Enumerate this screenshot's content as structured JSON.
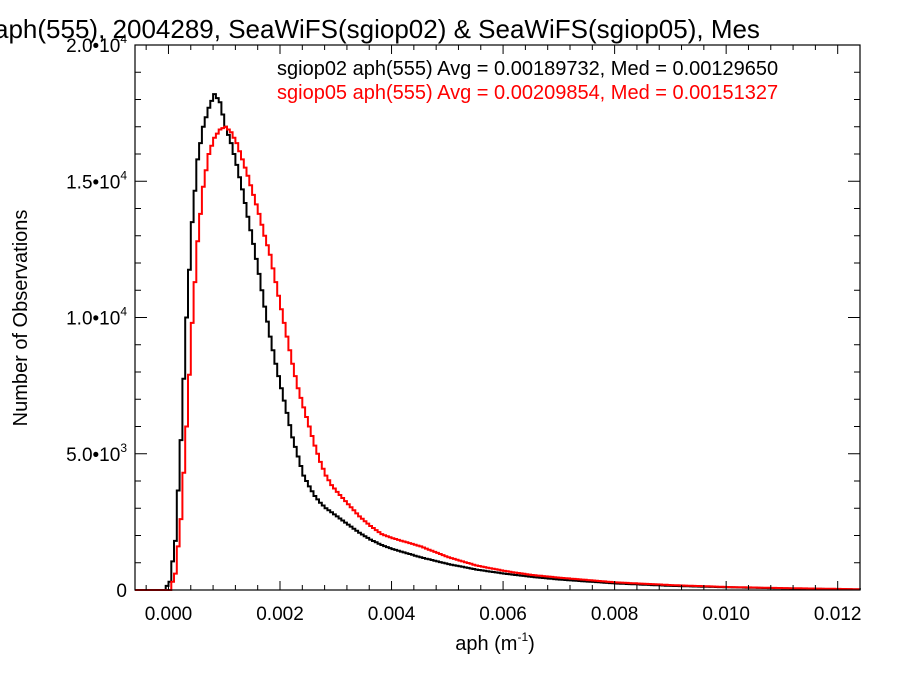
{
  "chart_data": {
    "type": "line",
    "title": "aph(555), 2004289, SeaWiFS(sgiop02) & SeaWiFS(sgiop05), Mes",
    "xlabel": "aph (m",
    "xlabel_exp": "-1",
    "xlabel_close": ")",
    "ylabel": "Number of Observations",
    "xlim": [
      -0.0006,
      0.0124
    ],
    "ylim": [
      0,
      20000
    ],
    "x_ticks": [
      {
        "value": 0.0,
        "label": "0.000"
      },
      {
        "value": 0.002,
        "label": "0.002"
      },
      {
        "value": 0.004,
        "label": "0.004"
      },
      {
        "value": 0.006,
        "label": "0.006"
      },
      {
        "value": 0.008,
        "label": "0.008"
      },
      {
        "value": 0.01,
        "label": "0.010"
      },
      {
        "value": 0.012,
        "label": "0.012"
      }
    ],
    "y_ticks": [
      {
        "value": 0,
        "mantissa": "0",
        "exp": ""
      },
      {
        "value": 5000,
        "mantissa": "5.0•10",
        "exp": "3"
      },
      {
        "value": 10000,
        "mantissa": "1.0•10",
        "exp": "4"
      },
      {
        "value": 15000,
        "mantissa": "1.5•10",
        "exp": "4"
      },
      {
        "value": 20000,
        "mantissa": "2.0•10",
        "exp": "4"
      }
    ],
    "legend_placement": "top-right",
    "series": [
      {
        "name": "sgiop02 aph(555) Avg = 0.00189732, Med = 0.00129650",
        "color": "#000000",
        "x": [
          -0.0001,
          0.0,
          0.0001,
          0.0002,
          0.0003,
          0.0004,
          0.0005,
          0.0006,
          0.0007,
          0.0008,
          0.0009,
          0.001,
          0.0011,
          0.0012,
          0.0013,
          0.0014,
          0.0015,
          0.0016,
          0.0017,
          0.0018,
          0.0019,
          0.002,
          0.0021,
          0.0022,
          0.0023,
          0.0024,
          0.0025,
          0.0026,
          0.0027,
          0.0028,
          0.003,
          0.0032,
          0.0034,
          0.0036,
          0.0038,
          0.004,
          0.0045,
          0.005,
          0.0055,
          0.006,
          0.0065,
          0.007,
          0.008,
          0.009,
          0.01,
          0.011,
          0.012,
          0.0124
        ],
        "y": [
          0,
          300,
          1800,
          5500,
          10000,
          13500,
          15800,
          17000,
          17700,
          18200,
          17900,
          17000,
          16400,
          15600,
          14700,
          13700,
          12700,
          11600,
          10400,
          9300,
          8300,
          7400,
          6500,
          5600,
          4900,
          4200,
          3800,
          3450,
          3200,
          3000,
          2700,
          2400,
          2100,
          1850,
          1650,
          1500,
          1200,
          950,
          750,
          600,
          480,
          380,
          240,
          150,
          100,
          60,
          30,
          20
        ]
      },
      {
        "name": "sgiop05 aph(555) Avg = 0.00209854, Med = 0.00151327",
        "color": "#ff0000",
        "x": [
          0.0,
          0.0001,
          0.0002,
          0.0003,
          0.0004,
          0.0005,
          0.0006,
          0.0007,
          0.0008,
          0.0009,
          0.001,
          0.0011,
          0.0012,
          0.0013,
          0.0014,
          0.0015,
          0.0016,
          0.0017,
          0.0018,
          0.0019,
          0.002,
          0.0021,
          0.0022,
          0.0023,
          0.0024,
          0.0025,
          0.0026,
          0.0027,
          0.0028,
          0.0029,
          0.003,
          0.0032,
          0.0034,
          0.0036,
          0.0038,
          0.004,
          0.0045,
          0.005,
          0.0055,
          0.006,
          0.0065,
          0.007,
          0.008,
          0.009,
          0.01,
          0.011,
          0.012,
          0.0124
        ],
        "y": [
          0,
          600,
          2600,
          6000,
          9800,
          12800,
          14800,
          16000,
          16600,
          16900,
          17000,
          16800,
          16400,
          15800,
          15200,
          14500,
          13800,
          13000,
          12300,
          11300,
          10300,
          9300,
          8300,
          7400,
          6700,
          6000,
          5300,
          4700,
          4200,
          3850,
          3600,
          3150,
          2700,
          2350,
          2050,
          1900,
          1600,
          1200,
          900,
          700,
          550,
          450,
          280,
          180,
          110,
          70,
          40,
          25
        ]
      }
    ]
  }
}
